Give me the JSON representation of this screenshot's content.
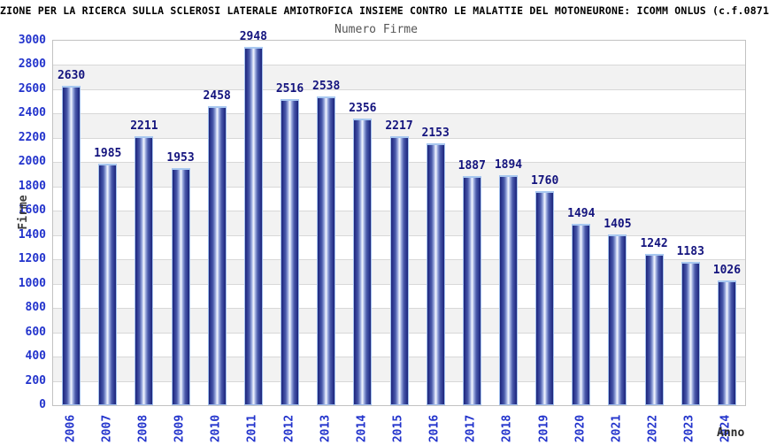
{
  "header": {
    "title": "ZIONE PER LA RICERCA SULLA SCLEROSI LATERALE AMIOTROFICA INSIEME CONTRO LE MALATTIE DEL MOTONEURONE: ICOMM ONLUS (c.f.0871"
  },
  "chart_data": {
    "type": "bar",
    "title": "Numero Firme",
    "xlabel": "Anno",
    "ylabel": "Firme",
    "categories": [
      "2006",
      "2007",
      "2008",
      "2009",
      "2010",
      "2011",
      "2012",
      "2013",
      "2014",
      "2015",
      "2016",
      "2017",
      "2018",
      "2019",
      "2020",
      "2021",
      "2022",
      "2023",
      "2024"
    ],
    "values": [
      2630,
      1985,
      2211,
      1953,
      2458,
      2948,
      2516,
      2538,
      2356,
      2217,
      2153,
      1887,
      1894,
      1760,
      1494,
      1405,
      1242,
      1183,
      1026
    ],
    "ylim": [
      0,
      3000
    ],
    "ytick_step": 200,
    "grid": true,
    "legend": "none",
    "stripe_bands": true,
    "colors": {
      "bar_edge": "#a2c0ee",
      "bar_dark": "#1e2678",
      "bar_light": "#f2f5fd",
      "value_label": "#14147e",
      "tick_label": "#2233cc",
      "stripe": "#f2f2f2",
      "gridline": "#d8d8d8",
      "plot_border": "#c2c2c2",
      "chart_title": "#555555",
      "header_title": "#000000"
    }
  }
}
